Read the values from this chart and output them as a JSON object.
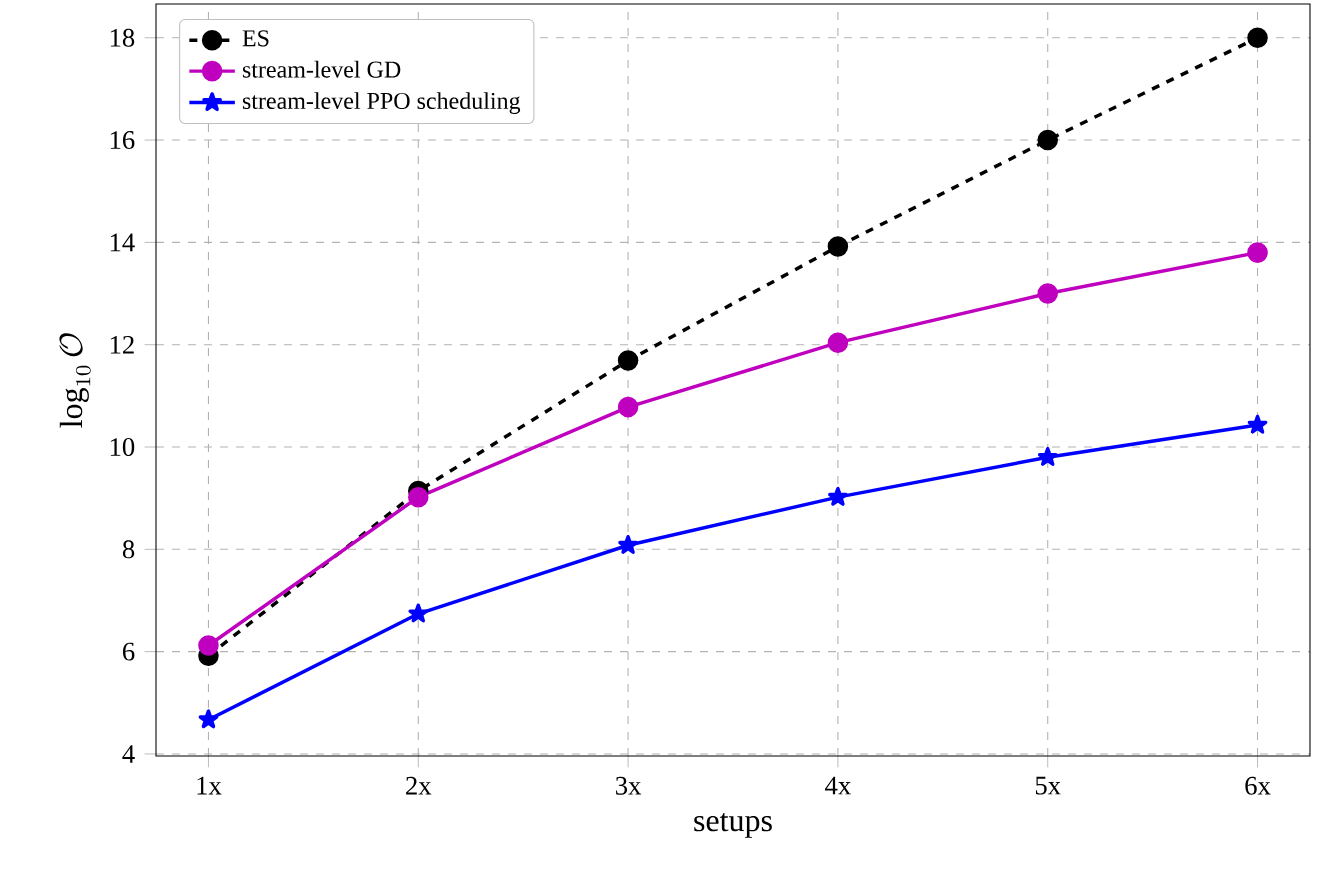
{
  "chart_data": {
    "type": "line",
    "xlabel": "setups",
    "ylabel": "\\log_{10}\\mathcal{O}",
    "categories": [
      "1x",
      "2x",
      "3x",
      "4x",
      "5x",
      "6x"
    ],
    "series": [
      {
        "name": "ES",
        "color": "#000000",
        "marker": "circle",
        "line_style": "dashed",
        "values": [
          5.92,
          9.14,
          11.69,
          13.92,
          16.0,
          18.0
        ]
      },
      {
        "name": "stream-level GD",
        "color": "#bf00bf",
        "marker": "circle",
        "line_style": "solid",
        "values": [
          6.12,
          9.02,
          10.78,
          12.04,
          13.0,
          13.8
        ]
      },
      {
        "name": "stream-level PPO scheduling",
        "color": "#0000ff",
        "marker": "star",
        "line_style": "solid",
        "values": [
          4.67,
          6.74,
          8.08,
          9.02,
          9.8,
          10.43
        ]
      }
    ],
    "ylim": [
      3.96,
      18.66
    ],
    "yticks": [
      4,
      6,
      8,
      10,
      12,
      14,
      16,
      18
    ],
    "grid": true,
    "legend": "top left"
  }
}
